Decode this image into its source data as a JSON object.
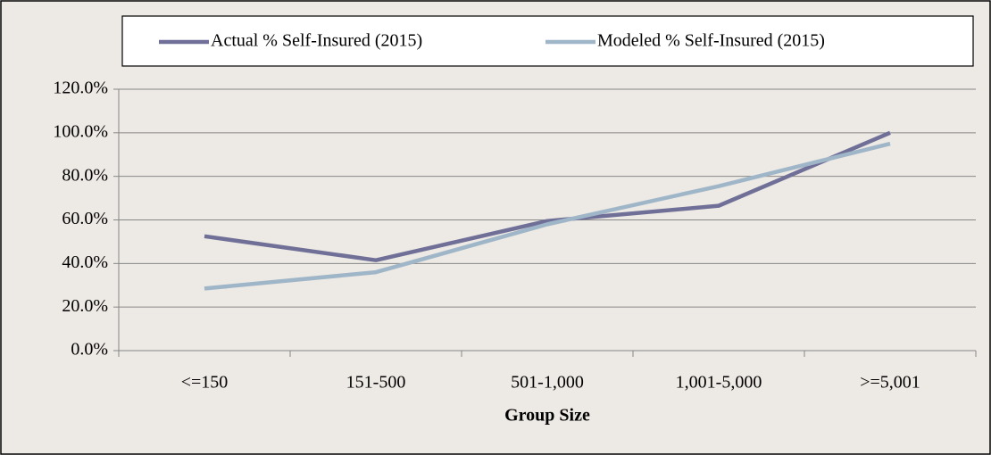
{
  "chart_data": {
    "type": "line",
    "x_label": "Group Size",
    "categories": [
      "<=150",
      "151-500",
      "501-1,000",
      "1,001-5,000",
      ">=5,001"
    ],
    "series": [
      {
        "name": "Actual % Self-Insured (2015)",
        "color": "#6f6f97",
        "values": [
          52.5,
          41.5,
          59.5,
          66.5,
          100
        ]
      },
      {
        "name": "Modeled % Self-Insured (2015)",
        "color": "#9fb6c9",
        "values": [
          28.5,
          36,
          58,
          75.5,
          95
        ]
      }
    ],
    "ylim": [
      0,
      120
    ],
    "yticks": [
      {
        "value": 0,
        "label": "0.0%"
      },
      {
        "value": 20,
        "label": "20.0%"
      },
      {
        "value": 40,
        "label": "40.0%"
      },
      {
        "value": 60,
        "label": "60.0%"
      },
      {
        "value": 80,
        "label": "80.0%"
      },
      {
        "value": 100,
        "label": "100.0%"
      },
      {
        "value": 120,
        "label": "120.0%"
      }
    ],
    "grid": true,
    "legend": "top"
  }
}
